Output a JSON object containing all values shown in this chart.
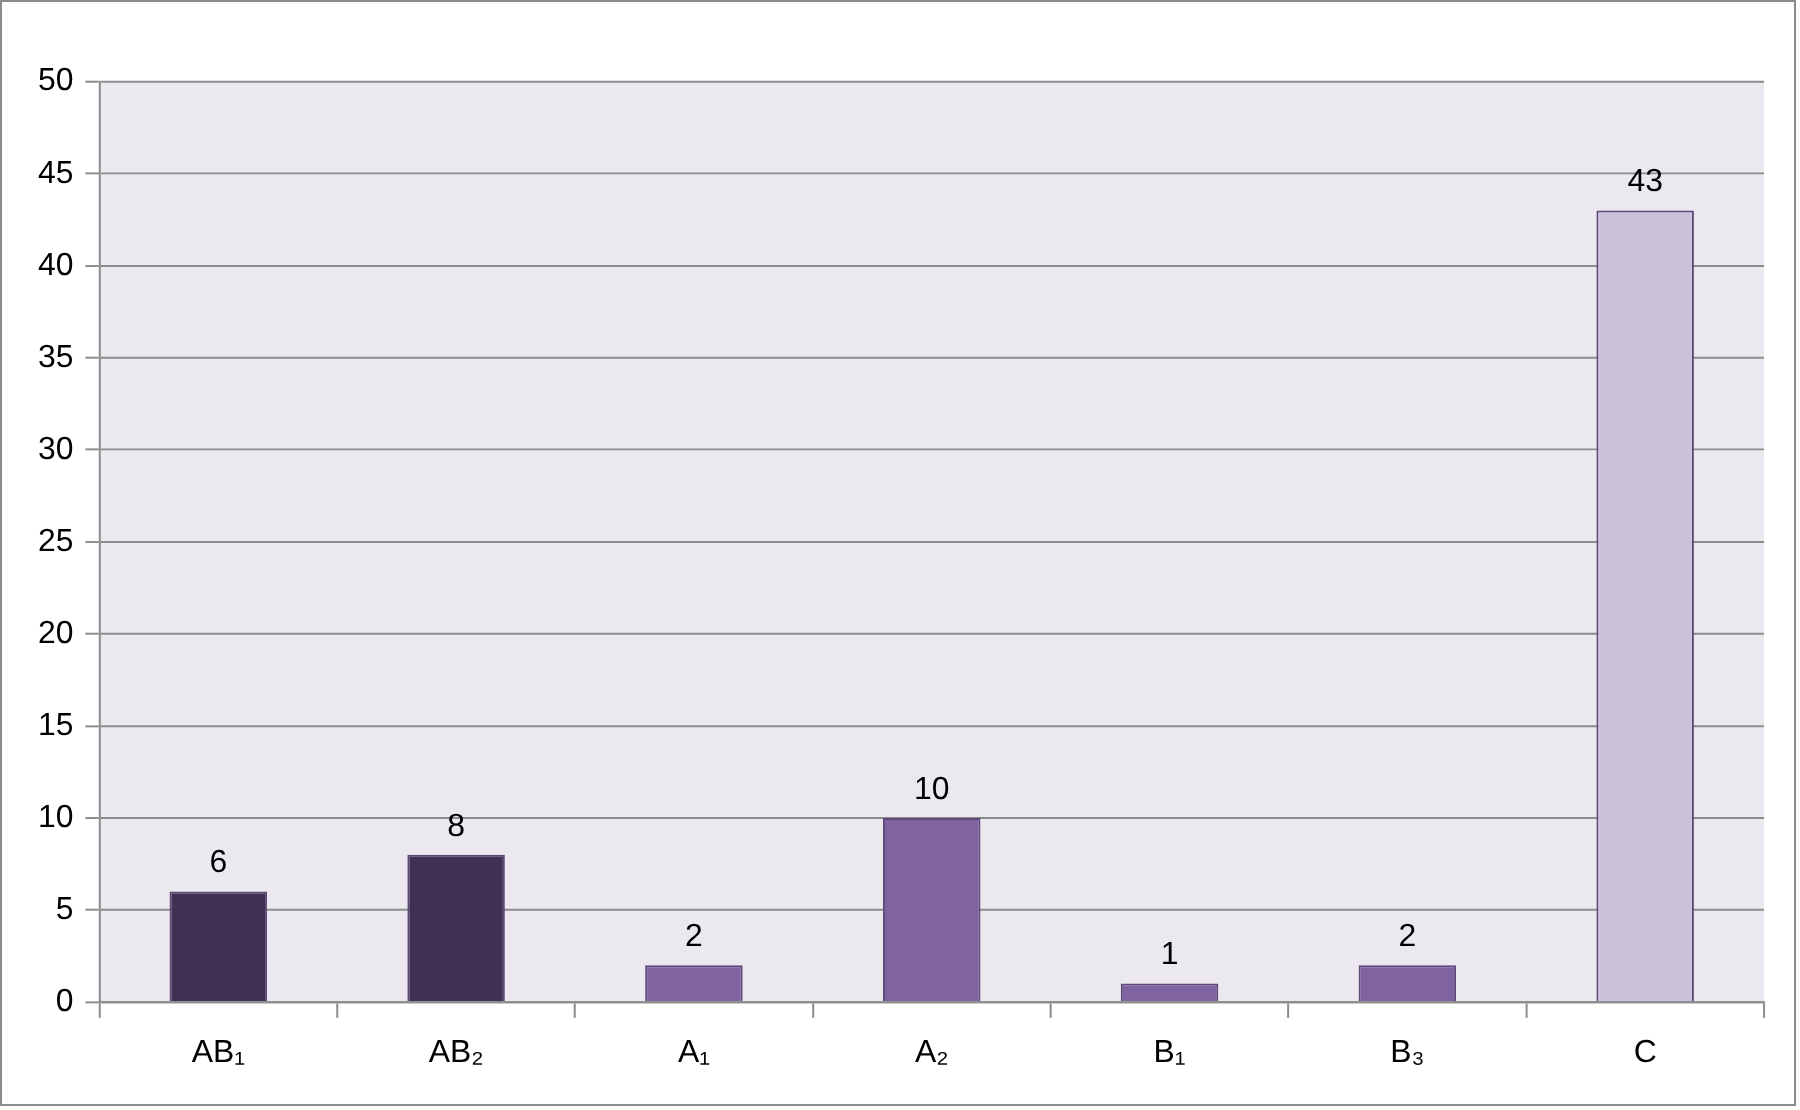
{
  "chart_data": {
    "type": "bar",
    "categories": [
      "AB₁",
      "AB₂",
      "A₁",
      "A₂",
      "B₁",
      "B₃",
      "C"
    ],
    "values": [
      6,
      8,
      2,
      10,
      1,
      2,
      43
    ],
    "colors": [
      "#3f3151",
      "#3f3151",
      "#8064a2",
      "#8064a2",
      "#8064a2",
      "#8064a2",
      "#ccc1da"
    ],
    "ylim": [
      0,
      50
    ],
    "yticks": [
      0,
      5,
      10,
      15,
      20,
      25,
      30,
      35,
      40,
      45,
      50
    ],
    "grid": "y",
    "legend": false,
    "data_labels": true
  }
}
